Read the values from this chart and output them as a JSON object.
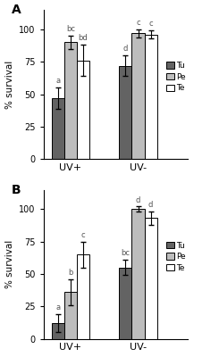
{
  "panel_A": {
    "groups": [
      "UV+",
      "UV-"
    ],
    "bars": {
      "Tu": [
        47,
        72
      ],
      "Pe": [
        90,
        97
      ],
      "Te": [
        76,
        96
      ]
    },
    "errors": {
      "Tu": [
        8,
        8
      ],
      "Pe": [
        5,
        3
      ],
      "Te": [
        12,
        3
      ]
    },
    "labels": {
      "Tu": [
        "a",
        "d"
      ],
      "Pe": [
        "bc",
        "c"
      ],
      "Te": [
        "bd",
        "c"
      ]
    }
  },
  "panel_B": {
    "groups": [
      "UV+",
      "UV-"
    ],
    "bars": {
      "Tu": [
        12,
        55
      ],
      "Pe": [
        36,
        100
      ],
      "Te": [
        65,
        93
      ]
    },
    "errors": {
      "Tu": [
        7,
        6
      ],
      "Pe": [
        10,
        2
      ],
      "Te": [
        10,
        5
      ]
    },
    "labels": {
      "Tu": [
        "a",
        "bc"
      ],
      "Pe": [
        "b",
        "d"
      ],
      "Te": [
        "c",
        "d"
      ]
    }
  },
  "colors": {
    "Tu": "#636363",
    "Pe": "#bdbdbd",
    "Te": "#ffffff"
  },
  "bar_edge": "#000000",
  "ylabel": "% survival",
  "ylim": [
    0,
    115
  ],
  "yticks": [
    0,
    25,
    50,
    75,
    100
  ],
  "legend_items": [
    "Tu",
    "Pe",
    "Te"
  ],
  "panel_labels": [
    "A",
    "B"
  ],
  "group_centers": [
    1.0,
    2.5
  ],
  "bar_width": 0.28,
  "xlim": [
    0.4,
    3.6
  ]
}
